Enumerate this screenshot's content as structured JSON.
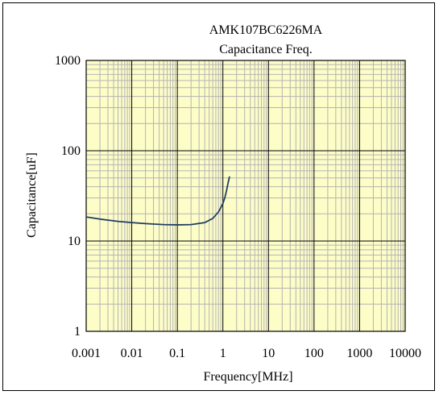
{
  "chart_data": {
    "type": "line",
    "title": "AMK107BC6226MA",
    "subtitle": "Capacitance Freq.",
    "xlabel": "Frequency[MHz]",
    "ylabel": "Capacitance[uF]",
    "x_scale": "log",
    "y_scale": "log",
    "xlim": [
      0.001,
      10000
    ],
    "ylim": [
      1,
      1000
    ],
    "x_ticks": [
      0.001,
      0.01,
      0.1,
      1,
      10,
      100,
      1000,
      10000
    ],
    "x_tick_labels": [
      "0.001",
      "0.01",
      "0.1",
      "1",
      "10",
      "100",
      "1000",
      "10000"
    ],
    "y_ticks": [
      1,
      10,
      100,
      1000
    ],
    "y_tick_labels": [
      "1",
      "10",
      "100",
      "1000"
    ],
    "grid": true,
    "legend": "none",
    "series": [
      {
        "x": [
          0.001,
          0.002,
          0.005,
          0.01,
          0.02,
          0.05,
          0.1,
          0.2,
          0.4,
          0.6,
          0.8,
          1.0,
          1.1,
          1.2,
          1.3,
          1.4
        ],
        "y": [
          18.5,
          17.5,
          16.5,
          16.0,
          15.6,
          15.2,
          15.1,
          15.2,
          16.0,
          17.8,
          21.0,
          26.0,
          30.0,
          36.0,
          44.0,
          52.0
        ]
      }
    ]
  },
  "colors": {
    "plot_background": "#fdfdc8",
    "minor_grid": "#b4b4b4",
    "major_grid": "#000000",
    "series_line": "#1f3f5f"
  }
}
